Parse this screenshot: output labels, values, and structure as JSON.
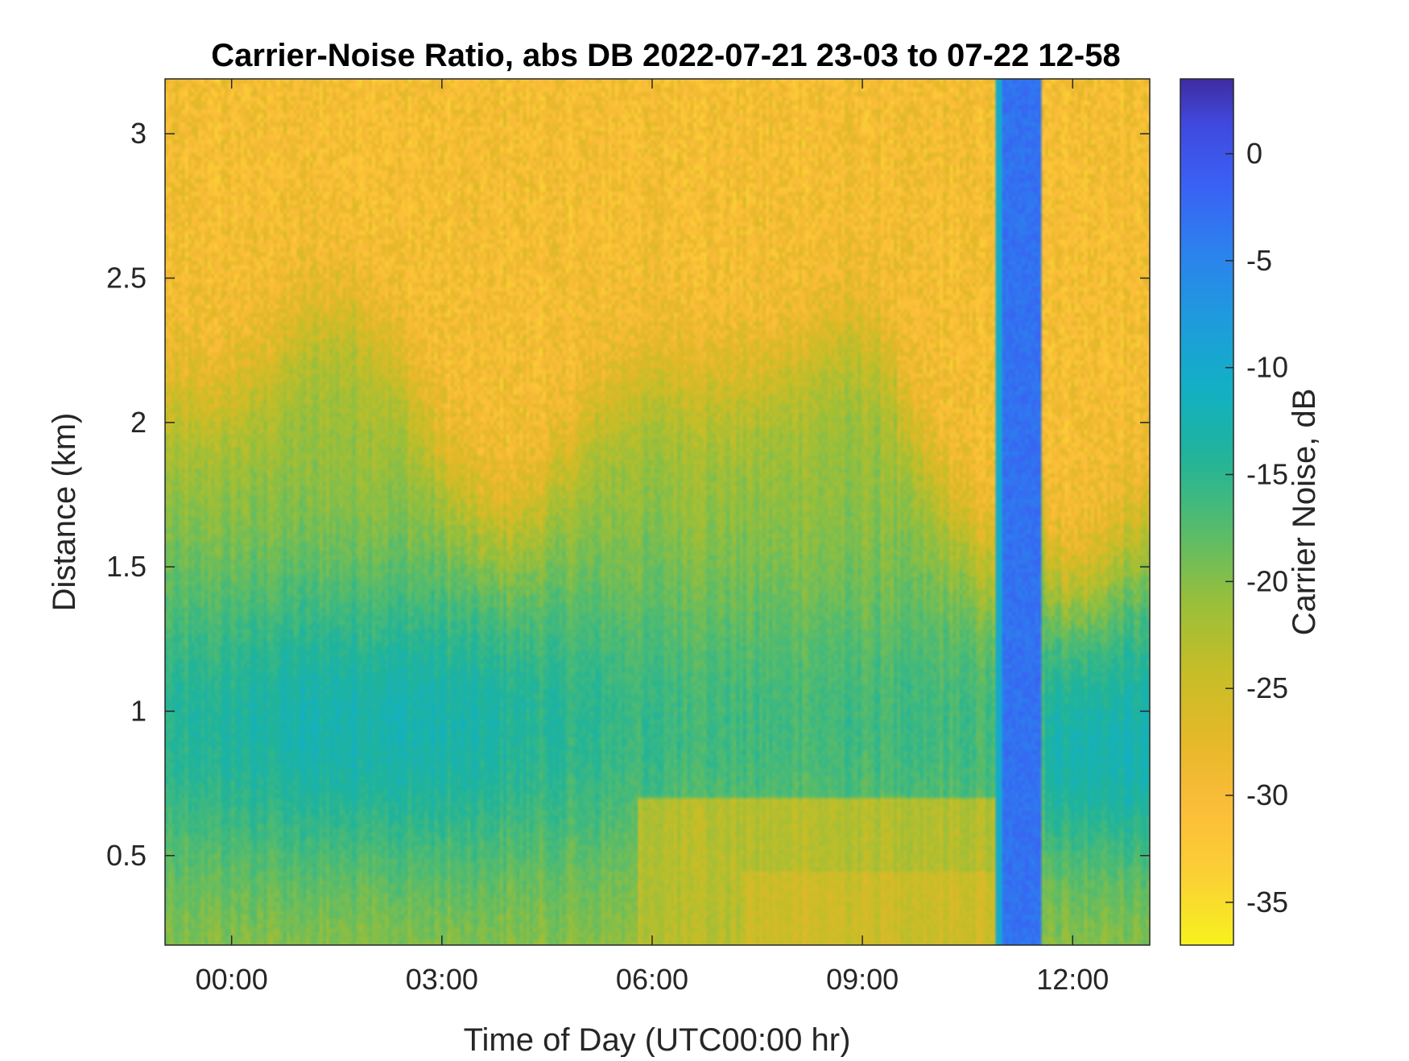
{
  "chart_data": {
    "type": "heatmap",
    "title": "Carrier-Noise Ratio, abs DB 2022-07-21 23-03 to 07-22 12-58",
    "xlabel": "Time of Day (UTC00:00 hr)",
    "ylabel": "Distance (km)",
    "xlim_hours": [
      -0.95,
      13.1
    ],
    "ylim_km": [
      0.19,
      3.19
    ],
    "x_ticks": [
      {
        "value": 0,
        "label": "00:00"
      },
      {
        "value": 3,
        "label": "03:00"
      },
      {
        "value": 6,
        "label": "06:00"
      },
      {
        "value": 9,
        "label": "09:00"
      },
      {
        "value": 12,
        "label": "12:00"
      }
    ],
    "y_ticks": [
      {
        "value": 0.5,
        "label": "0.5"
      },
      {
        "value": 1,
        "label": "1"
      },
      {
        "value": 1.5,
        "label": "1.5"
      },
      {
        "value": 2,
        "label": "2"
      },
      {
        "value": 2.5,
        "label": "2.5"
      },
      {
        "value": 3,
        "label": "3"
      }
    ],
    "colorbar": {
      "label": "Carrier Noise, dB",
      "range": [
        -37,
        3.5
      ],
      "colormap": "parula",
      "ticks": [
        {
          "value": 0,
          "label": "0"
        },
        {
          "value": -5,
          "label": "-5"
        },
        {
          "value": -10,
          "label": "-10"
        },
        {
          "value": -15,
          "label": "-15"
        },
        {
          "value": -20,
          "label": "-20"
        },
        {
          "value": -25,
          "label": "-25"
        },
        {
          "value": -30,
          "label": "-30"
        },
        {
          "value": -35,
          "label": "-35"
        }
      ]
    },
    "features": {
      "low_noise_band": {
        "x_start_hours": 11.0,
        "x_end_hours": 11.55,
        "value_db": -3
      },
      "thin_line": {
        "x_start_hours": 10.92,
        "x_end_hours": 10.99,
        "value_db": -10
      },
      "typical_values_db": {
        "near_range": -21,
        "mid_range_core": -13,
        "upper_layer": -30
      }
    }
  }
}
